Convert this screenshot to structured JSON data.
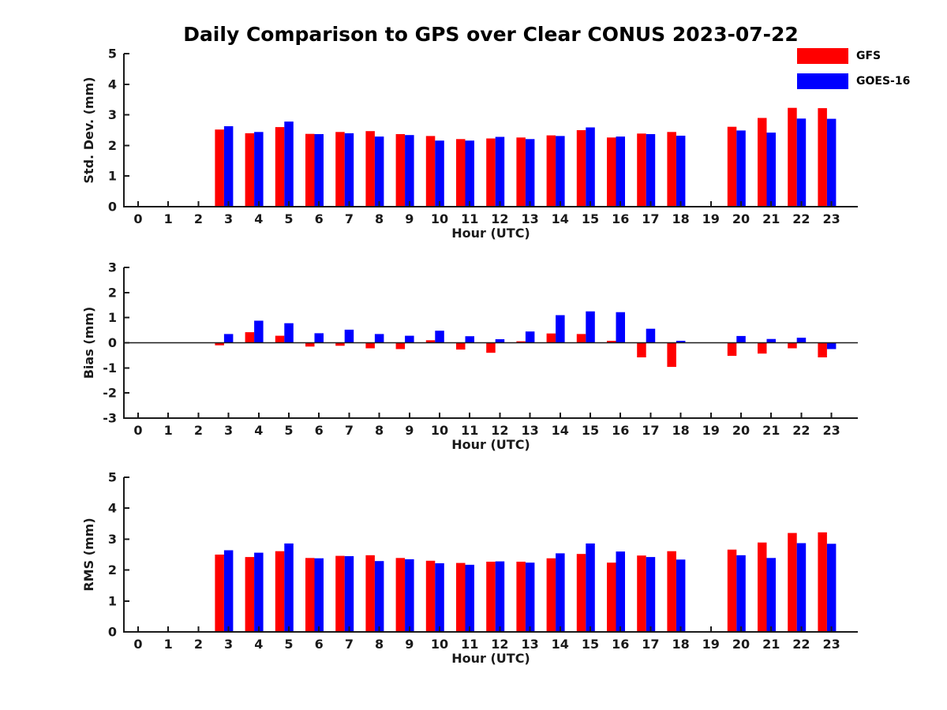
{
  "figure": {
    "title": "Daily Comparison to GPS over Clear CONUS 2023-07-22"
  },
  "legend": {
    "items": [
      {
        "label": "GFS",
        "color": "#ff0000"
      },
      {
        "label": "GOES-16",
        "color": "#0000ff"
      }
    ]
  },
  "chart_data": [
    {
      "type": "bar",
      "name": "std-dev",
      "ylabel": "Std. Dev. (mm)",
      "xlabel": "Hour (UTC)",
      "ylim": [
        0,
        5
      ],
      "yticks": [
        0,
        1,
        2,
        3,
        4,
        5
      ],
      "categories": [
        0,
        1,
        2,
        3,
        4,
        5,
        6,
        7,
        8,
        9,
        10,
        11,
        12,
        13,
        14,
        15,
        16,
        17,
        18,
        19,
        20,
        21,
        22,
        23
      ],
      "zero_line": false,
      "legend_position": "top-right",
      "grid": false,
      "series": [
        {
          "name": "GFS",
          "color": "#ff0000",
          "values": [
            null,
            null,
            null,
            2.52,
            2.4,
            2.6,
            2.38,
            2.44,
            2.47,
            2.37,
            2.31,
            2.21,
            2.23,
            2.26,
            2.33,
            2.5,
            2.26,
            2.39,
            2.44,
            null,
            2.61,
            2.9,
            3.23,
            3.22
          ]
        },
        {
          "name": "GOES-16",
          "color": "#0000ff",
          "values": [
            null,
            null,
            null,
            2.63,
            2.44,
            2.78,
            2.37,
            2.4,
            2.29,
            2.34,
            2.16,
            2.16,
            2.28,
            2.21,
            2.31,
            2.59,
            2.29,
            2.37,
            2.32,
            null,
            2.49,
            2.42,
            2.88,
            2.87
          ]
        }
      ]
    },
    {
      "type": "bar",
      "name": "bias",
      "ylabel": "Bias (mm)",
      "xlabel": "Hour (UTC)",
      "ylim": [
        -3,
        3
      ],
      "yticks": [
        -3,
        -2,
        -1,
        0,
        1,
        2,
        3
      ],
      "categories": [
        0,
        1,
        2,
        3,
        4,
        5,
        6,
        7,
        8,
        9,
        10,
        11,
        12,
        13,
        14,
        15,
        16,
        17,
        18,
        19,
        20,
        21,
        22,
        23
      ],
      "zero_line": true,
      "grid": false,
      "series": [
        {
          "name": "GFS",
          "color": "#ff0000",
          "values": [
            null,
            null,
            null,
            -0.1,
            0.42,
            0.28,
            -0.15,
            -0.12,
            -0.22,
            -0.25,
            0.1,
            -0.27,
            -0.4,
            0.06,
            0.37,
            0.35,
            0.08,
            -0.58,
            -0.96,
            null,
            -0.52,
            -0.43,
            -0.22,
            -0.58
          ]
        },
        {
          "name": "GOES-16",
          "color": "#0000ff",
          "values": [
            null,
            null,
            null,
            0.35,
            0.88,
            0.78,
            0.38,
            0.52,
            0.35,
            0.28,
            0.48,
            0.26,
            0.14,
            0.45,
            1.1,
            1.25,
            1.22,
            0.56,
            0.08,
            null,
            0.27,
            0.15,
            0.2,
            -0.25
          ]
        }
      ]
    },
    {
      "type": "bar",
      "name": "rms",
      "ylabel": "RMS (mm)",
      "xlabel": "Hour (UTC)",
      "ylim": [
        0,
        5
      ],
      "yticks": [
        0,
        1,
        2,
        3,
        4,
        5
      ],
      "categories": [
        0,
        1,
        2,
        3,
        4,
        5,
        6,
        7,
        8,
        9,
        10,
        11,
        12,
        13,
        14,
        15,
        16,
        17,
        18,
        19,
        20,
        21,
        22,
        23
      ],
      "zero_line": false,
      "grid": false,
      "series": [
        {
          "name": "GFS",
          "color": "#ff0000",
          "values": [
            null,
            null,
            null,
            2.5,
            2.42,
            2.61,
            2.39,
            2.46,
            2.48,
            2.39,
            2.3,
            2.23,
            2.27,
            2.27,
            2.38,
            2.52,
            2.24,
            2.47,
            2.61,
            null,
            2.66,
            2.89,
            3.2,
            3.22
          ]
        },
        {
          "name": "GOES-16",
          "color": "#0000ff",
          "values": [
            null,
            null,
            null,
            2.64,
            2.56,
            2.86,
            2.38,
            2.45,
            2.29,
            2.35,
            2.22,
            2.17,
            2.28,
            2.24,
            2.54,
            2.86,
            2.6,
            2.42,
            2.34,
            null,
            2.48,
            2.39,
            2.87,
            2.85
          ]
        }
      ]
    }
  ]
}
